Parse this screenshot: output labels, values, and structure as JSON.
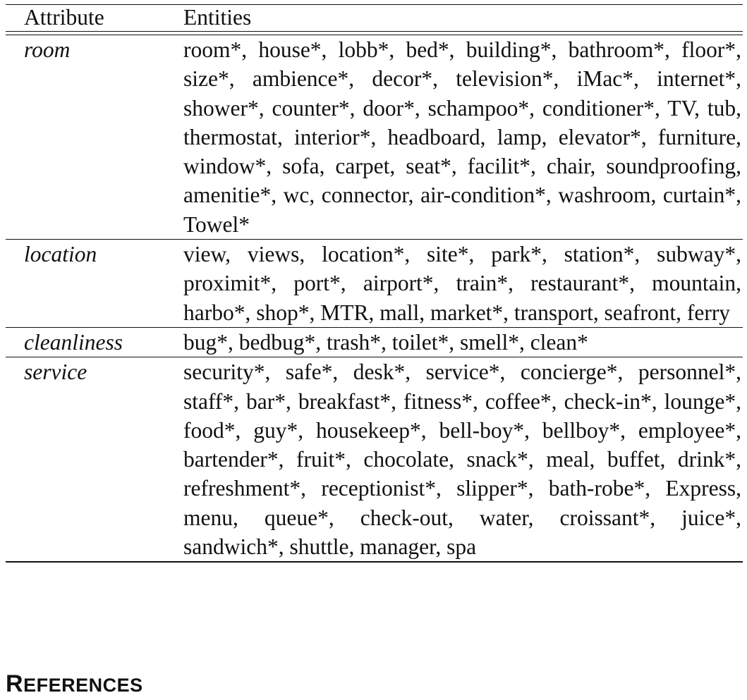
{
  "table": {
    "headers": {
      "attribute": "Attribute",
      "entities": "Entities"
    },
    "rows": [
      {
        "attribute": "room",
        "entities": "room*, house*, lobb*, bed*, building*, bath­room*, floor*, size*, ambience*, decor*, televi­sion*, iMac*, internet*, shower*, counter*, door*, schampoo*, conditioner*, TV, tub, thermostat, in­terior*, headboard, lamp, elevator*, furniture, win­dow*, sofa, carpet, seat*, facilit*, chair, sound­proofing, amenitie*, wc, connector, air-condition*, washroom, curtain*, Towel*"
      },
      {
        "attribute": "location",
        "entities": "view, views, location*, site*, park*, station*, sub­way*, proximit*, port*, airport*, train*, restau­rant*, mountain, harbo*, shop*, MTR, mall, mar­ket*, transport, seafront, ferry"
      },
      {
        "attribute": "cleanliness",
        "entities": "bug*, bedbug*, trash*, toilet*, smell*, clean*"
      },
      {
        "attribute": "service",
        "entities": "security*, safe*, desk*, service*, concierge*, per­sonnel*, staff*, bar*, breakfast*, fitness*, cof­fee*, check-in*, lounge*, food*, guy*, housekeep*, bell-boy*, bellboy*, employee*, bartender*, fruit*, chocolate, snack*, meal, buffet, drink*, refresh­ment*, receptionist*, slipper*, bath-robe*, Express, menu, queue*, check-out, water, croissant*, juice*, sandwich*, shuttle, manager, spa"
      }
    ]
  },
  "section_heading": {
    "first": "R",
    "rest": "EFERENCES"
  }
}
